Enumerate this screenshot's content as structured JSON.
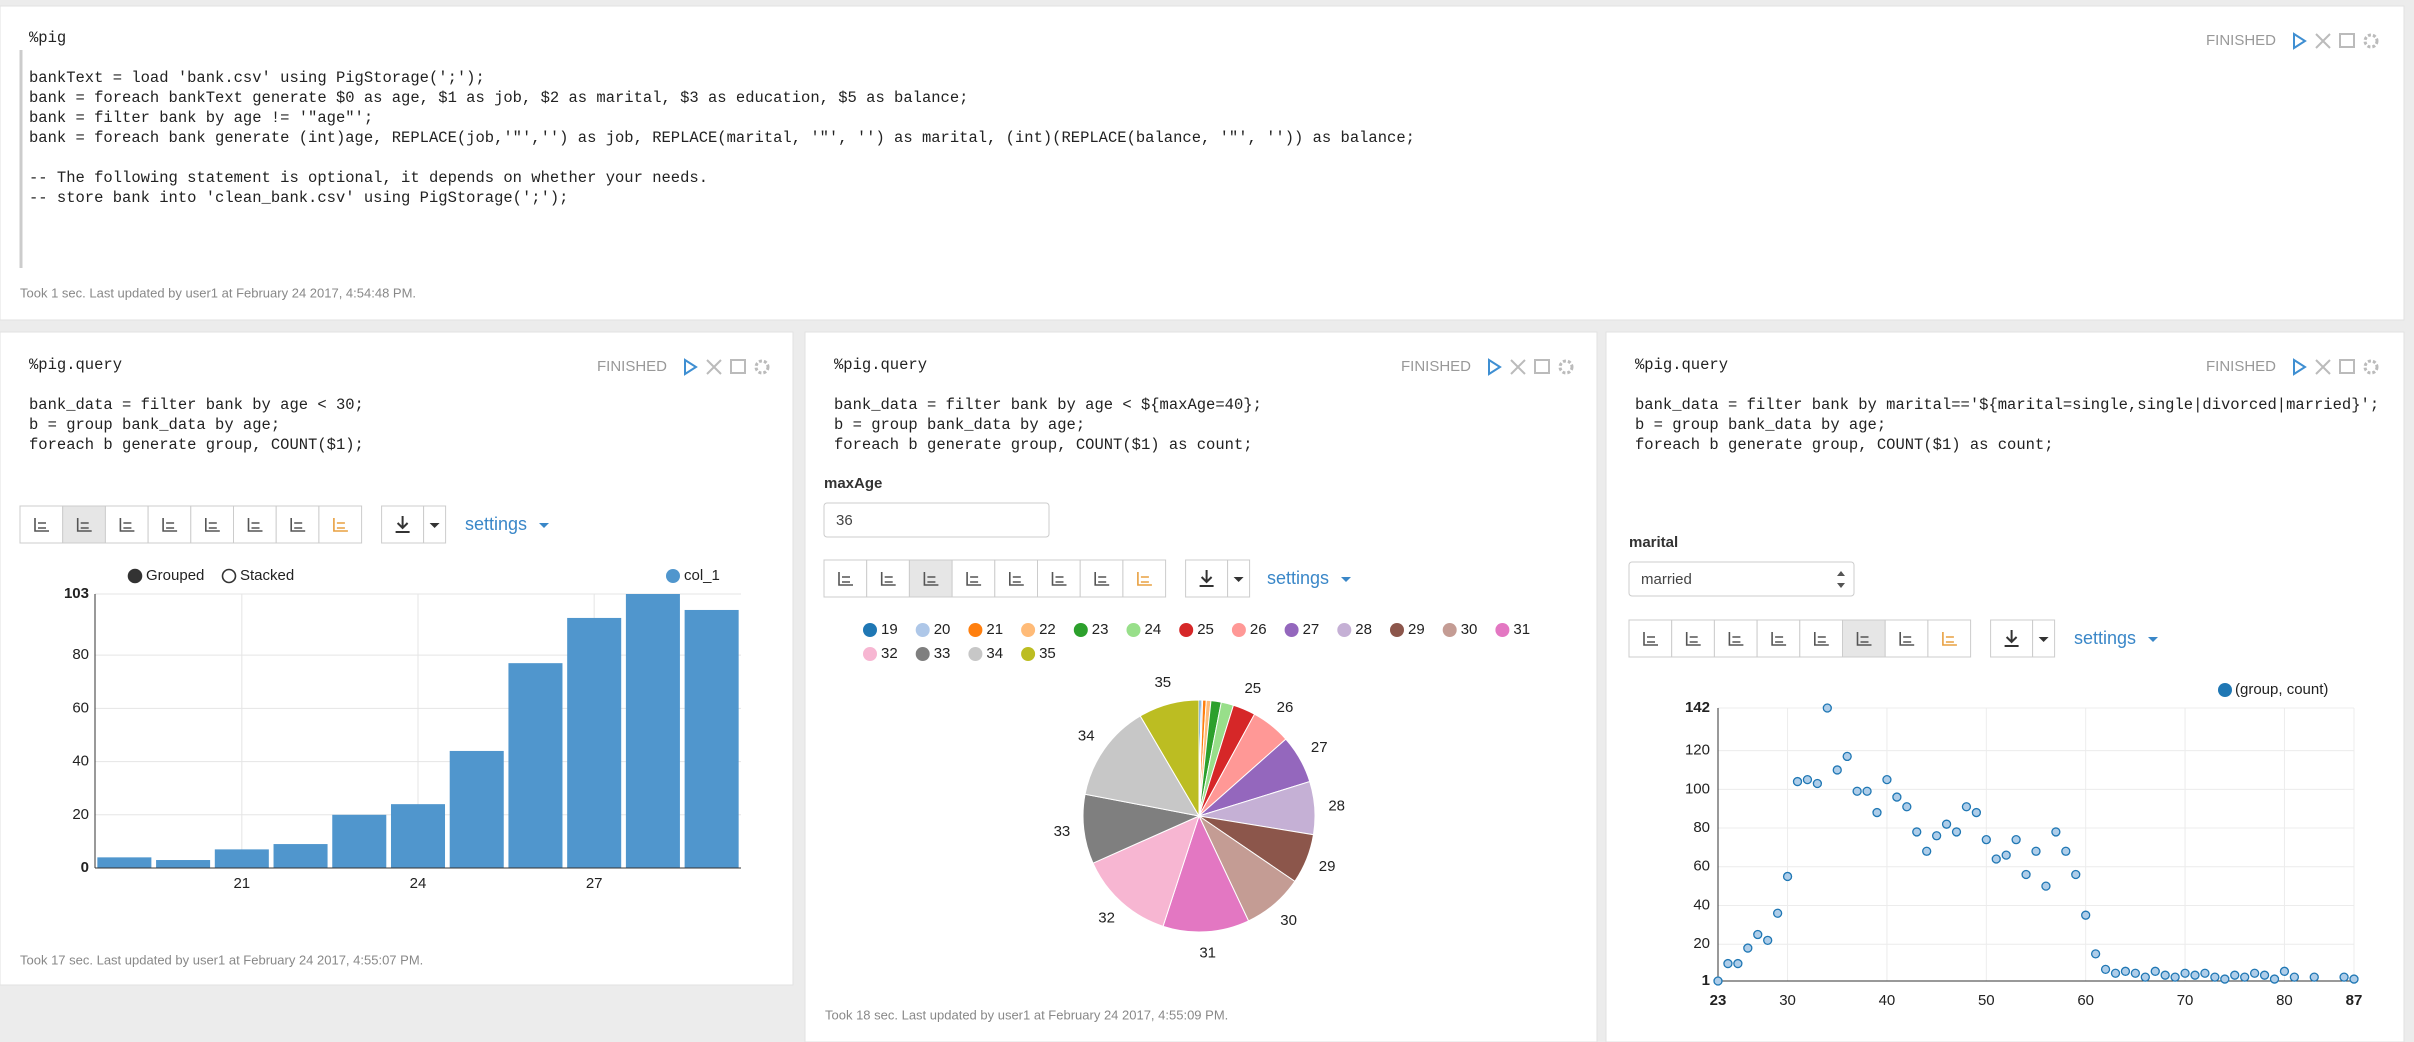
{
  "paragraphs": [
    {
      "code": [
        [
          "%pig"
        ],
        [
          "bankText = load 'bank.csv' using PigStorage(';');",
          "bank = foreach bankText generate $0 as age, $1 as job, $2 as marital, $3 as education, $5 as balance;",
          "bank = filter bank by age != '\"age\"';",
          "bank = foreach bank generate (int)age, REPLACE(job,'\"','') as job, REPLACE(marital, '\"', '') as marital, (int)(REPLACE(balance, '\"', '')) as balance;"
        ],
        [
          "-- The following statement is optional, it depends on whether your needs.",
          "-- store bank into 'clean_bank.csv' using PigStorage(';');"
        ]
      ],
      "status": "FINISHED",
      "footer": "Took 1 sec. Last updated by user1 at February 24 2017, 4:54:48 PM."
    },
    {
      "code": [
        [
          "%pig.query"
        ],
        [
          "bank_data = filter bank by age < 30;",
          "b = group bank_data by age;",
          "foreach b generate group, COUNT($1);"
        ]
      ],
      "status": "FINISHED",
      "settings": "settings",
      "chart_data": {
        "type": "bar",
        "modes": [
          "Grouped",
          "Stacked"
        ],
        "categories": [
          null,
          null,
          "21",
          null,
          null,
          "24",
          null,
          null,
          "27",
          null,
          null
        ],
        "series": [
          {
            "name": "col_1",
            "color": "#5096cd",
            "values": [
              4,
              3,
              7,
              9,
              20,
              24,
              44,
              77,
              94,
              103,
              97
            ]
          }
        ],
        "ylim": [
          0,
          103
        ],
        "yticks": [
          0,
          20,
          40,
          60,
          80,
          103
        ],
        "grid": true
      },
      "footer": "Took 17 sec. Last updated by user1 at February 24 2017, 4:55:07 PM."
    },
    {
      "code": [
        [
          "%pig.query"
        ],
        [
          "bank_data = filter bank by age < ${maxAge=40};",
          "b = group bank_data by age;",
          "foreach b generate group, COUNT($1) as count;"
        ]
      ],
      "status": "FINISHED",
      "form": {
        "label": "maxAge",
        "value": "36"
      },
      "settings": "settings",
      "chart_data": {
        "type": "pie",
        "categories": [
          "19",
          "20",
          "21",
          "22",
          "23",
          "24",
          "25",
          "26",
          "27",
          "28",
          "29",
          "30",
          "31",
          "32",
          "33",
          "34",
          "35"
        ],
        "values": [
          4,
          3,
          7,
          9,
          20,
          24,
          44,
          77,
          94,
          103,
          97,
          118,
          168,
          186,
          135,
          189,
          118
        ],
        "colors": [
          "#1f77b4",
          "#aec7e8",
          "#ff7f0e",
          "#ffbb78",
          "#2ca02c",
          "#98df8a",
          "#d62728",
          "#ff9896",
          "#9467bd",
          "#c5b0d5",
          "#8c564b",
          "#c49c94",
          "#e377c2",
          "#f7b6d2",
          "#7f7f7f",
          "#c7c7c7",
          "#bcbd22"
        ]
      },
      "footer": "Took 18 sec. Last updated by user1 at February 24 2017, 4:55:09 PM."
    },
    {
      "code": [
        [
          "%pig.query"
        ],
        [
          "bank_data = filter bank by marital=='${marital=single,single|divorced|married}';",
          "b = group bank_data by age;",
          "foreach b generate group, COUNT($1) as count;"
        ]
      ],
      "status": "FINISHED",
      "form": {
        "label": "marital",
        "value": "married"
      },
      "settings": "settings",
      "chart_data": {
        "type": "scatter",
        "x": [
          23,
          24,
          25,
          26,
          27,
          28,
          29,
          30,
          31,
          32,
          33,
          34,
          35,
          36,
          37,
          38,
          39,
          40,
          41,
          42,
          43,
          44,
          45,
          46,
          47,
          48,
          49,
          50,
          51,
          52,
          53,
          54,
          55,
          56,
          57,
          58,
          59,
          60,
          61,
          62,
          63,
          64,
          65,
          66,
          67,
          68,
          69,
          70,
          71,
          72,
          73,
          74,
          75,
          76,
          77,
          78,
          79,
          80,
          81,
          83,
          86,
          87
        ],
        "series": [
          {
            "name": "(group, count)",
            "color": "#1f77b4",
            "values": [
              1,
              10,
              10,
              18,
              25,
              22,
              36,
              55,
              104,
              105,
              103,
              142,
              110,
              117,
              99,
              99,
              88,
              105,
              96,
              91,
              78,
              68,
              76,
              82,
              78,
              91,
              88,
              74,
              64,
              66,
              74,
              56,
              68,
              50,
              78,
              68,
              56,
              35,
              15,
              7,
              5,
              6,
              5,
              3,
              6,
              4,
              3,
              5,
              4,
              5,
              3,
              2,
              4,
              3,
              5,
              4,
              2,
              6,
              3,
              3,
              3,
              2
            ]
          }
        ],
        "xlim": [
          23,
          87
        ],
        "xticks": [
          23,
          30,
          40,
          50,
          60,
          70,
          80,
          87
        ],
        "ylim": [
          1,
          142
        ],
        "yticks": [
          1,
          20,
          40,
          60,
          80,
          100,
          120,
          142
        ],
        "grid": true
      }
    }
  ]
}
